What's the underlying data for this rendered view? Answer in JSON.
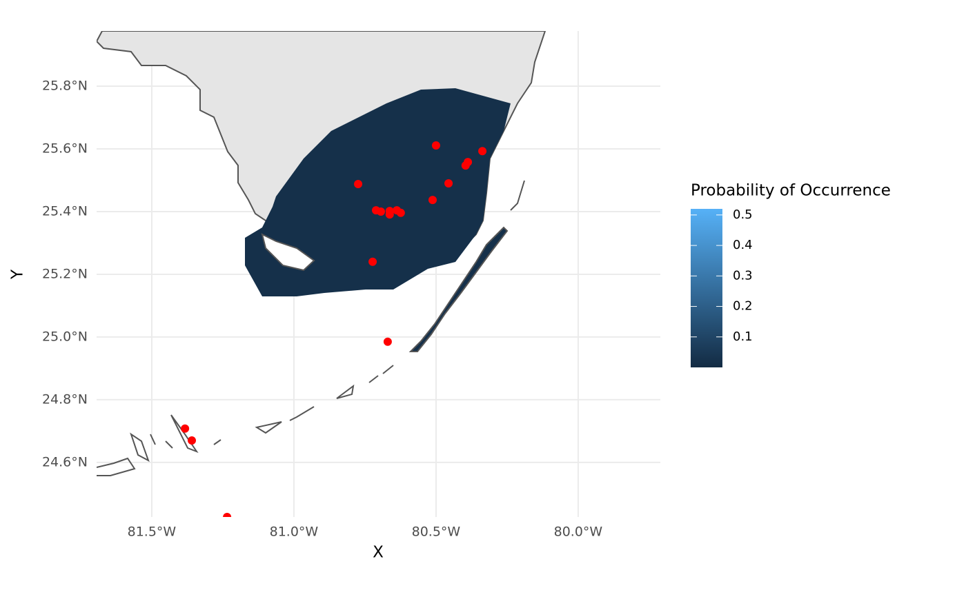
{
  "chart_data": {
    "type": "scatter",
    "x_label": "X",
    "y_label": "Y",
    "xlim": [
      -81.694,
      -79.711
    ],
    "ylim": [
      24.426,
      25.976
    ],
    "xticks": [
      {
        "value": -81.5,
        "label": "81.5°W"
      },
      {
        "value": -81.0,
        "label": "81.0°W"
      },
      {
        "value": -80.5,
        "label": "80.5°W"
      },
      {
        "value": -80.0,
        "label": "80.0°W"
      }
    ],
    "yticks": [
      {
        "value": 24.6,
        "label": "24.6°N"
      },
      {
        "value": 24.8,
        "label": "24.8°N"
      },
      {
        "value": 25.0,
        "label": "25.0°N"
      },
      {
        "value": 25.2,
        "label": "25.2°N"
      },
      {
        "value": 25.4,
        "label": "25.4°N"
      },
      {
        "value": 25.6,
        "label": "25.6°N"
      },
      {
        "value": 25.8,
        "label": "25.8°N"
      }
    ],
    "grid": true,
    "series": [
      {
        "color": "#ff0000",
        "x": [
          -80.5,
          -80.337,
          -80.388,
          -80.396,
          -80.456,
          -80.774,
          -80.512,
          -80.711,
          -80.694,
          -80.663,
          -80.663,
          -80.638,
          -80.624,
          -80.723,
          -80.67,
          -81.383,
          -81.359,
          -81.235
        ],
        "values": [
          25.611,
          25.593,
          25.558,
          25.547,
          25.49,
          25.488,
          25.437,
          25.404,
          25.4,
          25.402,
          25.391,
          25.404,
          25.396,
          25.24,
          24.985,
          24.708,
          24.67,
          24.426
        ]
      }
    ],
    "colorbar": {
      "title": "Probability of Occurrence",
      "colors": [
        "#132b43",
        "#56b1f7"
      ],
      "clim": [
        0,
        0.52
      ],
      "ticks": [
        0.1,
        0.2,
        0.3,
        0.4,
        0.5
      ]
    }
  }
}
